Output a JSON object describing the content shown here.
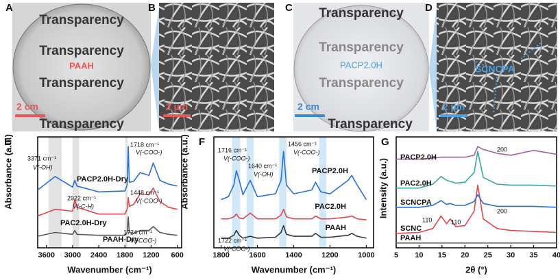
{
  "panels": [
    {
      "label": "A",
      "lines": [
        "Transparency",
        "Transparency",
        "Transparency",
        "Transparency"
      ],
      "sample": "PAAH",
      "scale_bar": "2 cm"
    },
    {
      "label": "B",
      "scale_bar": "2 µm"
    },
    {
      "label": "C",
      "lines": [
        "Transparency",
        "Transparency",
        "Transparency",
        "Transparency"
      ],
      "sample": "PACP2.0H",
      "scale_bar": "2 cm"
    },
    {
      "label": "D",
      "sample": "SCNCPA",
      "scale_bar": "2 µm"
    }
  ],
  "chart_data": [
    {
      "type": "line",
      "panel_label": "E",
      "xlabel": "Wavenumber (cm⁻¹)",
      "ylabel": "Absorbance (a.u.)",
      "xlim": [
        3800,
        500
      ],
      "xticks": [
        3600,
        3000,
        2400,
        1800,
        1200,
        600
      ],
      "ylim": [
        0,
        11.5
      ],
      "bands": [
        [
          3550,
          3250
        ],
        [
          3000,
          2850
        ],
        [
          1790,
          1740
        ]
      ],
      "x": [
        3800,
        3400,
        3000,
        2950,
        2900,
        2400,
        1800,
        1750,
        1724,
        1700,
        1600,
        1450,
        1250,
        1150,
        1000,
        800,
        600
      ],
      "series": [
        {
          "name": "PAAH-Dry",
          "color": "#555555",
          "values": [
            1.2,
            1.6,
            1.4,
            1.8,
            1.4,
            1.3,
            1.3,
            1.6,
            3.2,
            1.6,
            1.5,
            1.8,
            1.8,
            2.2,
            1.6,
            1.4,
            1.3
          ]
        },
        {
          "name": "PAC2.0H-Dry",
          "color": "#e0474c",
          "values": [
            3.3,
            4.0,
            3.8,
            5.0,
            4.2,
            3.5,
            3.5,
            4.0,
            5.2,
            4.3,
            4.5,
            5.6,
            5.5,
            6.2,
            4.8,
            4.2,
            4.0
          ]
        },
        {
          "name": "PACP2.0H-Dry",
          "color": "#2a6fd6",
          "values": [
            6.0,
            7.4,
            6.3,
            7.0,
            6.4,
            5.8,
            5.9,
            6.5,
            10.5,
            6.8,
            6.9,
            7.8,
            7.5,
            8.8,
            7.0,
            6.6,
            6.4
          ]
        }
      ],
      "annotations": [
        {
          "text": "3371 cm⁻¹",
          "sub": "V(-OH)"
        },
        {
          "text": "2922 cm⁻¹",
          "sub": "V(-C-H)"
        },
        {
          "text": "1718 cm⁻¹",
          "sub": "V(-COO-)"
        },
        {
          "text": "1448 cm⁻¹",
          "sub": "V(-COO-)"
        },
        {
          "text": "1724 cm⁻¹",
          "sub": "V(-COO-)"
        }
      ]
    },
    {
      "type": "line",
      "panel_label": "F",
      "xlabel": "Wavenumber (cm⁻¹)",
      "ylabel": "Absorbance (a.u.)",
      "xlim": [
        1840,
        960
      ],
      "xticks": [
        1800,
        1600,
        1400,
        1200,
        1000
      ],
      "ylim": [
        0,
        11.5
      ],
      "bands": [
        [
          1740,
          1695
        ],
        [
          1660,
          1620
        ],
        [
          1480,
          1440
        ],
        [
          1260,
          1220
        ]
      ],
      "x": [
        1800,
        1760,
        1730,
        1716,
        1700,
        1680,
        1640,
        1600,
        1500,
        1470,
        1456,
        1440,
        1400,
        1300,
        1280,
        1250,
        1200,
        1100,
        1080,
        1050,
        1000
      ],
      "series": [
        {
          "name": "PAAH",
          "color": "#333333",
          "values": [
            1.0,
            1.0,
            1.3,
            1.8,
            1.3,
            1.0,
            1.2,
            1.0,
            1.1,
            1.6,
            2.3,
            1.4,
            1.2,
            1.2,
            1.5,
            1.1,
            1.1,
            1.3,
            1.5,
            1.2,
            1.0
          ]
        },
        {
          "name": "PAC2.0H",
          "color": "#e0474c",
          "values": [
            3.0,
            3.0,
            3.2,
            3.5,
            3.1,
            3.0,
            3.6,
            3.0,
            3.0,
            3.4,
            4.0,
            3.2,
            3.0,
            3.0,
            3.3,
            3.0,
            3.0,
            3.2,
            3.3,
            3.0,
            2.9
          ]
        },
        {
          "name": "PACP2.0H",
          "color": "#2a6fd6",
          "values": [
            5.0,
            5.3,
            6.5,
            8.0,
            7.0,
            5.5,
            7.0,
            5.3,
            5.6,
            7.0,
            10.0,
            6.5,
            5.6,
            6.0,
            6.8,
            5.8,
            5.6,
            7.0,
            7.5,
            6.5,
            5.0
          ]
        }
      ],
      "annotations": [
        {
          "text": "1716 cm⁻¹",
          "sub": "V(-COO-)"
        },
        {
          "text": "1640 cm⁻¹",
          "sub": "V(-OH)"
        },
        {
          "text": "1456 cm⁻¹",
          "sub": "V(-COO-)"
        },
        {
          "text": "1722 cm⁻¹",
          "sub": "V(-COO-)"
        }
      ]
    },
    {
      "type": "line",
      "panel_label": "G",
      "xlabel": "2θ (°)",
      "ylabel": "Intensity (a.u.)",
      "xlim": [
        5,
        40
      ],
      "xticks": [
        5,
        10,
        15,
        20,
        25,
        30,
        35,
        40
      ],
      "ylim": [
        0,
        11.5
      ],
      "x": [
        5,
        10,
        13,
        14.8,
        16,
        16.8,
        18,
        20,
        22,
        22.8,
        24,
        27,
        30,
        35,
        40
      ],
      "series": [
        {
          "name": "PAAH",
          "color": "#666666",
          "values": [
            0.5,
            0.5,
            0.5,
            0.5,
            0.5,
            0.5,
            0.5,
            0.5,
            0.5,
            0.5,
            0.5,
            0.5,
            0.5,
            0.5,
            0.5
          ]
        },
        {
          "name": "SCNC",
          "color": "#e0474c",
          "values": [
            1.5,
            1.6,
            2.0,
            3.3,
            2.5,
            3.0,
            2.2,
            2.3,
            3.8,
            6.5,
            3.0,
            2.0,
            1.8,
            1.7,
            1.6
          ]
        },
        {
          "name": "SCNCPA",
          "color": "#2a6fd6",
          "values": [
            4.2,
            4.2,
            4.4,
            4.9,
            4.5,
            4.6,
            4.4,
            4.4,
            4.8,
            5.5,
            4.6,
            4.3,
            4.3,
            4.3,
            4.2
          ]
        },
        {
          "name": "PAC2.0H",
          "color": "#3aa89a",
          "values": [
            6.2,
            6.2,
            6.6,
            7.4,
            7.0,
            6.9,
            6.7,
            6.8,
            7.8,
            10.0,
            7.3,
            6.6,
            6.5,
            6.5,
            6.4
          ]
        },
        {
          "name": "PACP2.0H",
          "color": "#a0649c",
          "values": [
            9.2,
            9.2,
            9.3,
            9.4,
            9.4,
            9.4,
            9.4,
            9.4,
            9.6,
            10.5,
            10.2,
            9.8,
            9.6,
            10.1,
            9.7
          ]
        }
      ],
      "annotations": [
        {
          "text": "200"
        },
        {
          "text": "11̄0"
        },
        {
          "text": "110"
        },
        {
          "text": "200"
        }
      ]
    }
  ]
}
